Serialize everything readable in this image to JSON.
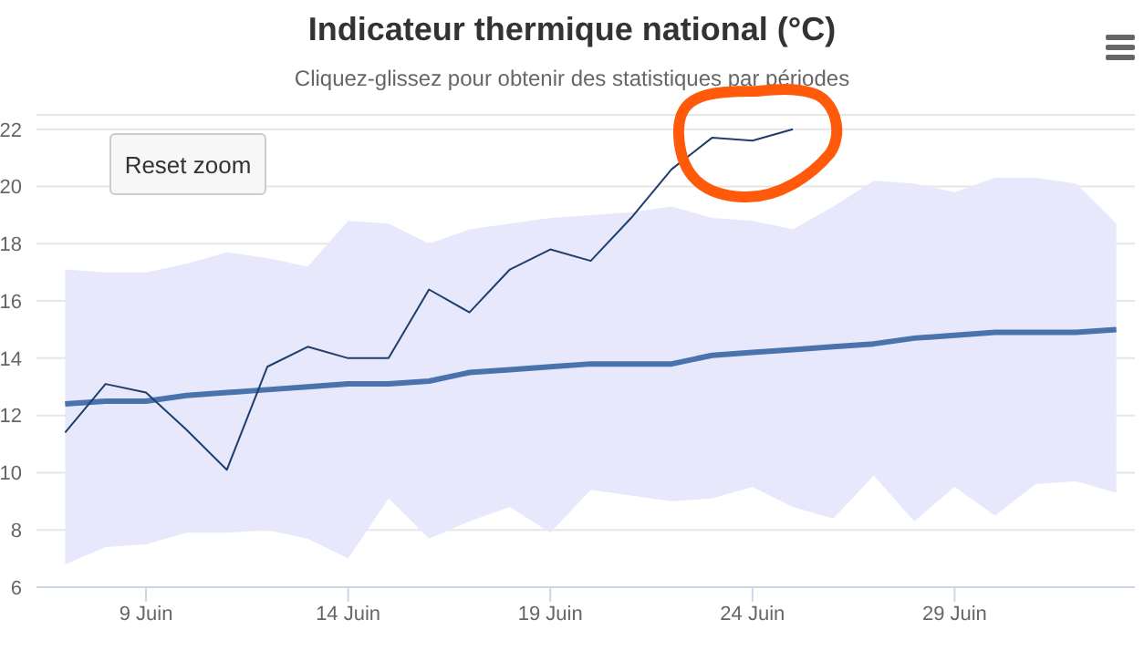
{
  "chart_data": {
    "type": "line",
    "title": "Indicateur thermique national (°C)",
    "subtitle": "Cliquez-glissez pour obtenir des statistiques par périodes",
    "annotations": [
      "Reset zoom"
    ],
    "xlim": [
      "--06-06T07:00",
      "--07-03T11:00"
    ],
    "xticks": [
      {
        "value": "--06-09",
        "label": "9 Juin"
      },
      {
        "value": "--06-14",
        "label": "14 Juin"
      },
      {
        "value": "--06-19",
        "label": "19 Juin"
      },
      {
        "value": "--06-24",
        "label": "24 Juin"
      },
      {
        "value": "--06-29",
        "label": "29 Juin"
      }
    ],
    "ylim": [
      6,
      22.5
    ],
    "yticks": [
      6,
      8,
      10,
      12,
      14,
      16,
      18,
      20,
      22
    ],
    "grid": "y",
    "legend": false,
    "marker": "none",
    "line_style": "solid",
    "series": [
      {
        "color": "#4a72ac",
        "x": [
          "--06-07",
          "--06-08",
          "--06-09",
          "--06-10",
          "--06-11",
          "--06-12",
          "--06-13",
          "--06-14",
          "--06-15",
          "--06-16",
          "--06-17",
          "--06-18",
          "--06-19",
          "--06-20",
          "--06-21",
          "--06-22",
          "--06-23",
          "--06-24",
          "--06-25",
          "--06-26",
          "--06-27",
          "--06-28",
          "--06-29",
          "--06-30",
          "--07-01",
          "--07-02",
          "--07-03"
        ],
        "values": [
          12.4,
          12.5,
          12.5,
          12.7,
          12.8,
          12.9,
          13.0,
          13.1,
          13.1,
          13.2,
          13.5,
          13.6,
          13.7,
          13.8,
          13.8,
          13.8,
          14.1,
          14.2,
          14.3,
          14.4,
          14.5,
          14.7,
          14.8,
          14.9,
          14.9,
          14.9,
          15.0
        ],
        "lower": [
          6.8,
          7.4,
          7.5,
          7.9,
          7.9,
          8.0,
          7.7,
          7.0,
          9.1,
          7.7,
          8.3,
          8.8,
          7.9,
          9.4,
          9.2,
          9.0,
          9.1,
          9.5,
          8.8,
          8.4,
          9.9,
          8.3,
          9.5,
          8.5,
          9.6,
          9.7,
          9.3
        ],
        "upper": [
          17.1,
          17.0,
          17.0,
          17.3,
          17.7,
          17.5,
          17.2,
          18.8,
          18.7,
          18.0,
          18.5,
          18.7,
          18.9,
          19.0,
          19.1,
          19.3,
          18.9,
          18.8,
          18.5,
          19.3,
          20.2,
          20.1,
          19.8,
          20.3,
          20.3,
          20.1,
          18.7
        ]
      },
      {
        "color": "#1f3e6c",
        "x": [
          "--06-07",
          "--06-08",
          "--06-09",
          "--06-10",
          "--06-11",
          "--06-12",
          "--06-13",
          "--06-14",
          "--06-15",
          "--06-16",
          "--06-17",
          "--06-18",
          "--06-19",
          "--06-20",
          "--06-21",
          "--06-22",
          "--06-23",
          "--06-24",
          "--06-25"
        ],
        "values": [
          11.4,
          13.1,
          12.8,
          11.5,
          10.1,
          13.7,
          14.4,
          14.0,
          14.0,
          16.4,
          15.6,
          17.1,
          17.8,
          17.4,
          18.9,
          20.6,
          21.7,
          21.6,
          22.0
        ]
      }
    ]
  }
}
